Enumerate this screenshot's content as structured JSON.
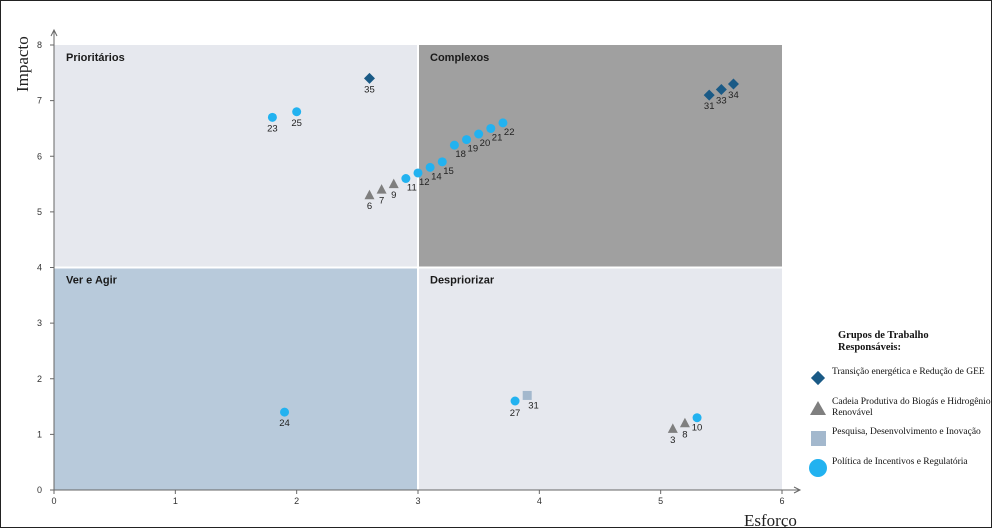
{
  "chart_data": {
    "type": "scatter",
    "xlabel": "Esforço",
    "ylabel": "Impacto",
    "xlim": [
      0,
      6
    ],
    "ylim": [
      0,
      8
    ],
    "x_ticks": [
      "0",
      "1",
      "2",
      "3",
      "4",
      "5",
      "6"
    ],
    "y_ticks": [
      "0",
      "1",
      "2",
      "3",
      "4",
      "5",
      "6",
      "7",
      "8"
    ],
    "quadrants": [
      {
        "label": "Prioritários",
        "x_range": [
          0,
          3
        ],
        "y_range": [
          4,
          8
        ],
        "color": "#e6e8ee"
      },
      {
        "label": "Complexos",
        "x_range": [
          3,
          6
        ],
        "y_range": [
          4,
          8
        ],
        "color": "#a0a0a0"
      },
      {
        "label": "Ver e Agir",
        "x_range": [
          0,
          3
        ],
        "y_range": [
          0,
          4
        ],
        "color": "#b8cadb"
      },
      {
        "label": "Despriorizar",
        "x_range": [
          3,
          6
        ],
        "y_range": [
          0,
          4
        ],
        "color": "#e6e8ee"
      }
    ],
    "legend_title": "Grupos de Trabalho Responsáveis:",
    "legend_placement": "right",
    "series": [
      {
        "name": "Transição energética e Redução de GEE",
        "marker": "diamond",
        "color": "#1a5a86",
        "points": [
          {
            "x": 2.6,
            "y": 7.4,
            "label": "35"
          },
          {
            "x": 5.4,
            "y": 7.1,
            "label": "31"
          },
          {
            "x": 5.5,
            "y": 7.2,
            "label": "33"
          },
          {
            "x": 5.6,
            "y": 7.3,
            "label": "34"
          }
        ]
      },
      {
        "name": "Cadeia Produtiva do Biogás e Hidrogênio Renovável",
        "marker": "triangle",
        "color": "#7f7f7f",
        "points": [
          {
            "x": 2.6,
            "y": 5.3,
            "label": "6"
          },
          {
            "x": 2.7,
            "y": 5.4,
            "label": "7"
          },
          {
            "x": 2.8,
            "y": 5.5,
            "label": "9"
          },
          {
            "x": 5.1,
            "y": 1.1,
            "label": "3"
          },
          {
            "x": 5.2,
            "y": 1.2,
            "label": "8"
          }
        ]
      },
      {
        "name": "Pesquisa, Desenvolvimento e Inovação",
        "marker": "square",
        "color": "#a3b8cd",
        "points": [
          {
            "x": 3.9,
            "y": 1.7,
            "label": "31"
          }
        ]
      },
      {
        "name": "Política de Incentivos e Regulatória",
        "marker": "circle",
        "color": "#22b2f0",
        "points": [
          {
            "x": 1.8,
            "y": 6.7,
            "label": "23"
          },
          {
            "x": 2.0,
            "y": 6.8,
            "label": "25"
          },
          {
            "x": 2.9,
            "y": 5.6,
            "label": "11"
          },
          {
            "x": 3.0,
            "y": 5.7,
            "label": "12"
          },
          {
            "x": 3.1,
            "y": 5.8,
            "label": "14"
          },
          {
            "x": 3.2,
            "y": 5.9,
            "label": "15"
          },
          {
            "x": 3.3,
            "y": 6.2,
            "label": "18"
          },
          {
            "x": 3.4,
            "y": 6.3,
            "label": "19"
          },
          {
            "x": 3.5,
            "y": 6.4,
            "label": "20"
          },
          {
            "x": 3.6,
            "y": 6.5,
            "label": "21"
          },
          {
            "x": 3.7,
            "y": 6.6,
            "label": "22"
          },
          {
            "x": 1.9,
            "y": 1.4,
            "label": "24"
          },
          {
            "x": 3.8,
            "y": 1.6,
            "label": "27"
          },
          {
            "x": 5.3,
            "y": 1.3,
            "label": "10"
          }
        ]
      }
    ]
  }
}
